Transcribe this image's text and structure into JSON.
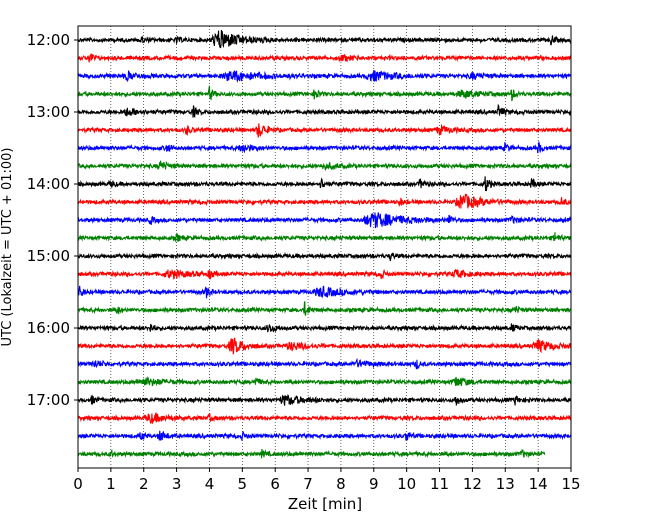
{
  "chart_data": {
    "type": "line",
    "title": "",
    "xlabel": "Zeit  [min]",
    "ylabel": "UTC (Lokalzeit = UTC + 01:00)",
    "xlim": [
      0,
      15
    ],
    "x_ticks": [
      0,
      1,
      2,
      3,
      4,
      5,
      6,
      7,
      8,
      9,
      10,
      11,
      12,
      13,
      14,
      15
    ],
    "grid": "vertical dotted lines at each minute",
    "row_interval_minutes": 15,
    "trace_color_cycle": [
      "#000000",
      "#ff0000",
      "#0000ff",
      "#008000"
    ],
    "hour_labels": [
      "12:00",
      "13:00",
      "14:00",
      "15:00",
      "16:00",
      "17:00"
    ],
    "rows": [
      {
        "start": "12:00",
        "color": "#000000",
        "end_min": 15,
        "events": [
          {
            "t": 4.3,
            "amp": 1.0,
            "dur": 0.6
          },
          {
            "t": 1.9,
            "amp": 0.4,
            "dur": 0.1
          },
          {
            "t": 3.0,
            "amp": 0.3,
            "dur": 0.1
          },
          {
            "t": 14.4,
            "amp": 0.5,
            "dur": 0.1
          },
          {
            "t": 15.0,
            "amp": 0.4,
            "dur": 0.1
          }
        ]
      },
      {
        "start": "12:15",
        "color": "#ff0000",
        "end_min": 15,
        "events": [
          {
            "t": 0.35,
            "amp": 0.7,
            "dur": 0.1
          },
          {
            "t": 8.0,
            "amp": 0.3,
            "dur": 0.3
          }
        ]
      },
      {
        "start": "12:30",
        "color": "#0000ff",
        "end_min": 15,
        "events": [
          {
            "t": 1.5,
            "amp": 0.4,
            "dur": 0.3
          },
          {
            "t": 4.7,
            "amp": 0.5,
            "dur": 0.8
          },
          {
            "t": 9.0,
            "amp": 0.5,
            "dur": 0.6
          },
          {
            "t": 12.0,
            "amp": 0.3,
            "dur": 0.3
          }
        ]
      },
      {
        "start": "12:45",
        "color": "#008000",
        "end_min": 15,
        "events": [
          {
            "t": 4.0,
            "amp": 0.7,
            "dur": 0.1
          },
          {
            "t": 7.2,
            "amp": 0.7,
            "dur": 0.1
          },
          {
            "t": 11.7,
            "amp": 0.4,
            "dur": 0.4
          },
          {
            "t": 13.2,
            "amp": 0.6,
            "dur": 0.1
          }
        ]
      },
      {
        "start": "13:00",
        "color": "#000000",
        "end_min": 15,
        "events": [
          {
            "t": 1.5,
            "amp": 0.4,
            "dur": 0.3
          },
          {
            "t": 3.5,
            "amp": 0.6,
            "dur": 0.1
          },
          {
            "t": 12.8,
            "amp": 0.8,
            "dur": 0.1
          }
        ]
      },
      {
        "start": "13:15",
        "color": "#ff0000",
        "end_min": 15,
        "events": [
          {
            "t": 3.3,
            "amp": 0.5,
            "dur": 0.1
          },
          {
            "t": 5.5,
            "amp": 0.8,
            "dur": 0.2
          },
          {
            "t": 11.0,
            "amp": 0.4,
            "dur": 0.3
          }
        ]
      },
      {
        "start": "13:30",
        "color": "#0000ff",
        "end_min": 15,
        "events": [
          {
            "t": 2.7,
            "amp": 0.5,
            "dur": 0.1
          },
          {
            "t": 5.0,
            "amp": 0.4,
            "dur": 0.3
          },
          {
            "t": 13.0,
            "amp": 0.5,
            "dur": 0.1
          },
          {
            "t": 14.0,
            "amp": 0.6,
            "dur": 0.1
          }
        ]
      },
      {
        "start": "13:45",
        "color": "#008000",
        "end_min": 15,
        "events": [
          {
            "t": 2.5,
            "amp": 0.5,
            "dur": 0.2
          },
          {
            "t": 7.5,
            "amp": 0.3,
            "dur": 0.3
          }
        ]
      },
      {
        "start": "14:00",
        "color": "#000000",
        "end_min": 15,
        "events": [
          {
            "t": 1.0,
            "amp": 0.4,
            "dur": 0.1
          },
          {
            "t": 7.4,
            "amp": 0.6,
            "dur": 0.1
          },
          {
            "t": 10.4,
            "amp": 0.5,
            "dur": 0.1
          },
          {
            "t": 12.4,
            "amp": 0.9,
            "dur": 0.1
          },
          {
            "t": 13.8,
            "amp": 0.5,
            "dur": 0.1
          }
        ]
      },
      {
        "start": "14:15",
        "color": "#ff0000",
        "end_min": 15,
        "events": [
          {
            "t": 9.8,
            "amp": 0.4,
            "dur": 0.1
          },
          {
            "t": 11.7,
            "amp": 0.8,
            "dur": 0.5
          },
          {
            "t": 14.7,
            "amp": 0.5,
            "dur": 0.1
          }
        ]
      },
      {
        "start": "14:30",
        "color": "#0000ff",
        "end_min": 15,
        "events": [
          {
            "t": 2.2,
            "amp": 0.4,
            "dur": 0.1
          },
          {
            "t": 9.0,
            "amp": 0.8,
            "dur": 0.8
          },
          {
            "t": 11.3,
            "amp": 0.5,
            "dur": 0.1
          },
          {
            "t": 13.2,
            "amp": 0.3,
            "dur": 0.2
          }
        ]
      },
      {
        "start": "14:45",
        "color": "#008000",
        "end_min": 15,
        "events": [
          {
            "t": 3.0,
            "amp": 0.4,
            "dur": 0.1
          },
          {
            "t": 14.5,
            "amp": 0.6,
            "dur": 0.1
          }
        ]
      },
      {
        "start": "15:00",
        "color": "#000000",
        "end_min": 15,
        "events": [
          {
            "t": 9.5,
            "amp": 0.4,
            "dur": 0.1
          }
        ]
      },
      {
        "start": "15:15",
        "color": "#ff0000",
        "end_min": 15,
        "events": [
          {
            "t": 2.8,
            "amp": 0.4,
            "dur": 0.5
          },
          {
            "t": 4.0,
            "amp": 0.5,
            "dur": 0.1
          },
          {
            "t": 9.2,
            "amp": 0.6,
            "dur": 0.1
          },
          {
            "t": 11.5,
            "amp": 0.4,
            "dur": 0.3
          }
        ]
      },
      {
        "start": "15:30",
        "color": "#0000ff",
        "end_min": 15,
        "events": [
          {
            "t": 0.05,
            "amp": 0.6,
            "dur": 0.1
          },
          {
            "t": 3.9,
            "amp": 0.6,
            "dur": 0.1
          },
          {
            "t": 7.4,
            "amp": 0.5,
            "dur": 0.6
          }
        ]
      },
      {
        "start": "15:45",
        "color": "#008000",
        "end_min": 15,
        "events": [
          {
            "t": 1.2,
            "amp": 0.4,
            "dur": 0.1
          },
          {
            "t": 6.9,
            "amp": 0.8,
            "dur": 0.1
          },
          {
            "t": 13.3,
            "amp": 0.4,
            "dur": 0.1
          }
        ]
      },
      {
        "start": "16:00",
        "color": "#000000",
        "end_min": 15,
        "events": [
          {
            "t": 2.2,
            "amp": 0.5,
            "dur": 0.1
          },
          {
            "t": 5.8,
            "amp": 0.4,
            "dur": 0.2
          },
          {
            "t": 13.2,
            "amp": 0.4,
            "dur": 0.1
          }
        ]
      },
      {
        "start": "16:15",
        "color": "#ff0000",
        "end_min": 15,
        "events": [
          {
            "t": 4.7,
            "amp": 0.9,
            "dur": 0.3
          },
          {
            "t": 6.5,
            "amp": 0.4,
            "dur": 0.4
          },
          {
            "t": 14.0,
            "amp": 0.6,
            "dur": 0.4
          }
        ]
      },
      {
        "start": "16:30",
        "color": "#0000ff",
        "end_min": 15,
        "events": [
          {
            "t": 0.5,
            "amp": 0.4,
            "dur": 0.2
          },
          {
            "t": 8.5,
            "amp": 0.3,
            "dur": 0.4
          },
          {
            "t": 10.3,
            "amp": 0.5,
            "dur": 0.1
          }
        ]
      },
      {
        "start": "16:45",
        "color": "#008000",
        "end_min": 15,
        "events": [
          {
            "t": 2.0,
            "amp": 0.4,
            "dur": 0.5
          },
          {
            "t": 5.4,
            "amp": 0.5,
            "dur": 0.1
          },
          {
            "t": 11.5,
            "amp": 0.5,
            "dur": 0.3
          }
        ]
      },
      {
        "start": "17:00",
        "color": "#000000",
        "end_min": 15,
        "events": [
          {
            "t": 0.4,
            "amp": 0.5,
            "dur": 0.1
          },
          {
            "t": 6.3,
            "amp": 0.5,
            "dur": 0.5
          },
          {
            "t": 11.5,
            "amp": 0.6,
            "dur": 0.1
          },
          {
            "t": 13.3,
            "amp": 0.5,
            "dur": 0.1
          }
        ]
      },
      {
        "start": "17:15",
        "color": "#ff0000",
        "end_min": 15,
        "events": [
          {
            "t": 2.2,
            "amp": 0.5,
            "dur": 0.4
          },
          {
            "t": 4.0,
            "amp": 0.3,
            "dur": 0.1
          }
        ]
      },
      {
        "start": "17:30",
        "color": "#0000ff",
        "end_min": 15,
        "events": [
          {
            "t": 1.9,
            "amp": 0.4,
            "dur": 0.1
          },
          {
            "t": 2.5,
            "amp": 0.5,
            "dur": 0.2
          },
          {
            "t": 5.0,
            "amp": 0.4,
            "dur": 0.1
          },
          {
            "t": 10.0,
            "amp": 0.6,
            "dur": 0.1
          }
        ]
      },
      {
        "start": "17:45",
        "color": "#008000",
        "end_min": 14.2,
        "events": [
          {
            "t": 1.0,
            "amp": 0.3,
            "dur": 0.1
          },
          {
            "t": 5.6,
            "amp": 0.4,
            "dur": 0.1
          },
          {
            "t": 13.5,
            "amp": 0.4,
            "dur": 0.1
          }
        ]
      }
    ]
  }
}
